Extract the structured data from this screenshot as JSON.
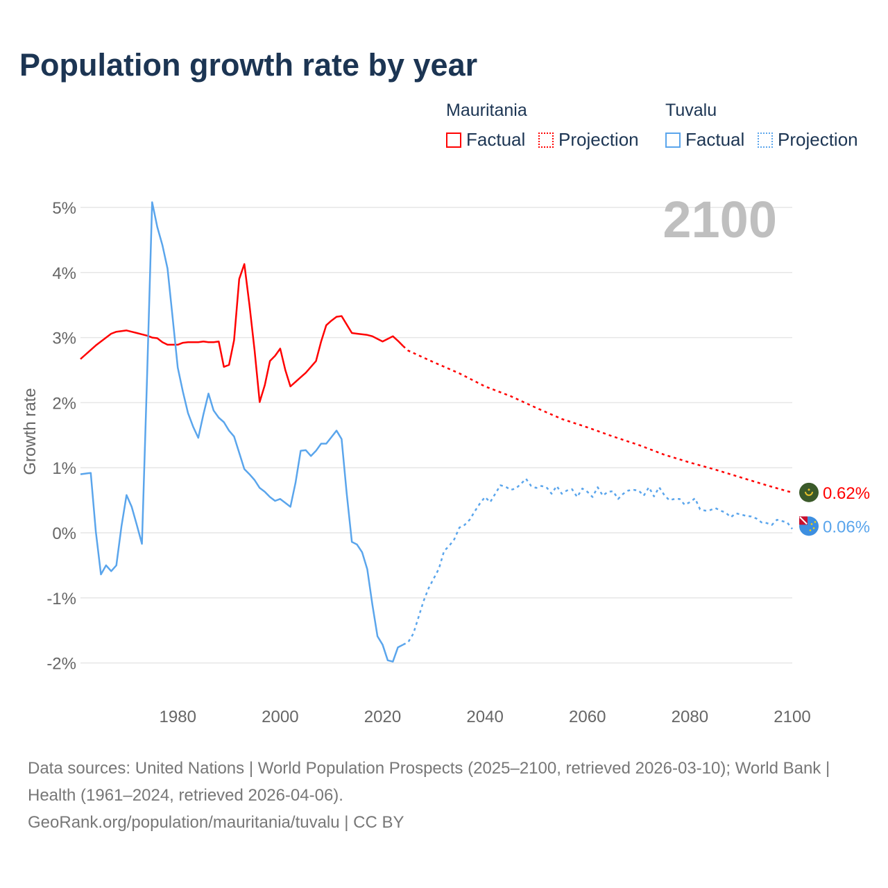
{
  "title": "Population growth rate by year",
  "legend": {
    "groups": [
      {
        "name": "Mauritania",
        "factual": "Factual",
        "projection": "Projection",
        "color": "#ff0000"
      },
      {
        "name": "Tuvalu",
        "factual": "Factual",
        "projection": "Projection",
        "color": "#5aa5ec"
      }
    ]
  },
  "year_badge": "2100",
  "footer": {
    "sources": "Data sources: United Nations | World Population Prospects (2025–2100, retrieved 2026-03-10); World Bank | Health (1961–2024, retrieved 2026-04-06).",
    "credit": "GeoRank.org/population/mauritania/tuvalu | CC BY"
  },
  "chart_data": {
    "type": "line",
    "title": "Population growth rate by year",
    "xlabel": "",
    "ylabel": "Growth rate",
    "xlim": [
      1961,
      2100
    ],
    "ylim": [
      -2.3,
      5.1
    ],
    "x_ticks": [
      "1980",
      "2000",
      "2020",
      "2040",
      "2060",
      "2080",
      "2100"
    ],
    "x_tick_values": [
      1980,
      2000,
      2020,
      2040,
      2060,
      2080,
      2100
    ],
    "y_ticks": [
      "5%",
      "4%",
      "3%",
      "2%",
      "1%",
      "0%",
      "-1%",
      "-2%"
    ],
    "y_tick_values": [
      5,
      4,
      3,
      2,
      1,
      0,
      -1,
      -2
    ],
    "grid": true,
    "legend_position": "top-right",
    "series": [
      {
        "name": "Mauritania",
        "kind": "Factual",
        "color": "#ff0000",
        "x": [
          1961,
          1962,
          1963,
          1964,
          1965,
          1966,
          1967,
          1968,
          1969,
          1970,
          1971,
          1972,
          1973,
          1974,
          1975,
          1976,
          1977,
          1978,
          1979,
          1980,
          1981,
          1982,
          1983,
          1984,
          1985,
          1986,
          1987,
          1988,
          1989,
          1990,
          1991,
          1992,
          1993,
          1994,
          1995,
          1996,
          1997,
          1998,
          1999,
          2000,
          2001,
          2002,
          2003,
          2004,
          2005,
          2006,
          2007,
          2008,
          2009,
          2010,
          2011,
          2012,
          2013,
          2014,
          2015,
          2016,
          2017,
          2018,
          2019,
          2020,
          2021,
          2022,
          2023,
          2024
        ],
        "y": [
          2.67,
          2.74,
          2.81,
          2.88,
          2.94,
          3.0,
          3.06,
          3.09,
          3.1,
          3.11,
          3.09,
          3.07,
          3.05,
          3.03,
          3.0,
          2.99,
          2.93,
          2.89,
          2.89,
          2.89,
          2.92,
          2.93,
          2.93,
          2.93,
          2.94,
          2.93,
          2.93,
          2.94,
          2.55,
          2.58,
          2.96,
          3.9,
          4.13,
          3.5,
          2.8,
          2.01,
          2.27,
          2.64,
          2.72,
          2.83,
          2.5,
          2.25,
          2.32,
          2.39,
          2.46,
          2.55,
          2.64,
          2.94,
          3.19,
          3.26,
          3.32,
          3.33,
          3.2,
          3.07,
          3.06,
          3.05,
          3.04,
          3.02,
          2.98,
          2.94,
          2.98,
          3.02,
          2.95,
          2.87
        ]
      },
      {
        "name": "Mauritania",
        "kind": "Projection",
        "color": "#ff0000",
        "x": [
          2024,
          2025,
          2030,
          2035,
          2040,
          2045,
          2050,
          2055,
          2060,
          2065,
          2070,
          2075,
          2080,
          2085,
          2090,
          2095,
          2099,
          2100
        ],
        "y": [
          2.87,
          2.8,
          2.62,
          2.45,
          2.25,
          2.1,
          1.92,
          1.75,
          1.62,
          1.48,
          1.35,
          1.2,
          1.08,
          0.97,
          0.85,
          0.73,
          0.64,
          0.62
        ]
      },
      {
        "name": "Tuvalu",
        "kind": "Factual",
        "color": "#5aa5ec",
        "x": [
          1961,
          1962,
          1963,
          1964,
          1965,
          1966,
          1967,
          1968,
          1969,
          1970,
          1971,
          1972,
          1973,
          1974,
          1975,
          1976,
          1977,
          1978,
          1979,
          1980,
          1981,
          1982,
          1983,
          1984,
          1985,
          1986,
          1987,
          1988,
          1989,
          1990,
          1991,
          1992,
          1993,
          1994,
          1995,
          1996,
          1997,
          1998,
          1999,
          2000,
          2001,
          2002,
          2003,
          2004,
          2005,
          2006,
          2007,
          2008,
          2009,
          2010,
          2011,
          2012,
          2013,
          2014,
          2015,
          2016,
          2017,
          2018,
          2019,
          2020,
          2021,
          2022,
          2023,
          2024
        ],
        "y": [
          0.9,
          0.91,
          0.92,
          0.02,
          -0.64,
          -0.5,
          -0.59,
          -0.5,
          0.1,
          0.58,
          0.4,
          0.12,
          -0.17,
          2.4,
          5.08,
          4.7,
          4.42,
          4.06,
          3.3,
          2.54,
          2.17,
          1.84,
          1.63,
          1.46,
          1.82,
          2.14,
          1.88,
          1.77,
          1.7,
          1.57,
          1.48,
          1.23,
          0.98,
          0.9,
          0.81,
          0.69,
          0.63,
          0.55,
          0.49,
          0.52,
          0.46,
          0.4,
          0.77,
          1.26,
          1.27,
          1.18,
          1.26,
          1.37,
          1.37,
          1.47,
          1.57,
          1.44,
          0.6,
          -0.14,
          -0.18,
          -0.3,
          -0.56,
          -1.1,
          -1.59,
          -1.72,
          -1.96,
          -1.98,
          -1.76,
          -1.72
        ]
      },
      {
        "name": "Tuvalu",
        "kind": "Projection",
        "color": "#5aa5ec",
        "x": [
          2024,
          2025,
          2026,
          2027,
          2028,
          2029,
          2030,
          2031,
          2032,
          2033,
          2034,
          2035,
          2036,
          2037,
          2038,
          2039,
          2040,
          2041,
          2042,
          2043,
          2044,
          2045,
          2046,
          2047,
          2048,
          2049,
          2050,
          2051,
          2052,
          2053,
          2054,
          2055,
          2056,
          2057,
          2058,
          2059,
          2060,
          2061,
          2062,
          2063,
          2064,
          2065,
          2066,
          2067,
          2068,
          2069,
          2070,
          2071,
          2072,
          2073,
          2074,
          2075,
          2076,
          2077,
          2078,
          2079,
          2080,
          2081,
          2082,
          2083,
          2084,
          2085,
          2086,
          2087,
          2088,
          2089,
          2090,
          2091,
          2092,
          2093,
          2094,
          2095,
          2096,
          2097,
          2098,
          2099,
          2100
        ],
        "y": [
          -1.72,
          -1.68,
          -1.55,
          -1.3,
          -1.05,
          -0.85,
          -0.7,
          -0.55,
          -0.28,
          -0.2,
          -0.1,
          0.08,
          0.12,
          0.2,
          0.33,
          0.45,
          0.55,
          0.47,
          0.6,
          0.73,
          0.71,
          0.66,
          0.68,
          0.75,
          0.83,
          0.72,
          0.69,
          0.72,
          0.7,
          0.6,
          0.72,
          0.6,
          0.65,
          0.67,
          0.55,
          0.68,
          0.63,
          0.55,
          0.7,
          0.57,
          0.63,
          0.64,
          0.52,
          0.6,
          0.65,
          0.66,
          0.65,
          0.57,
          0.7,
          0.56,
          0.7,
          0.58,
          0.5,
          0.52,
          0.52,
          0.43,
          0.47,
          0.53,
          0.36,
          0.34,
          0.35,
          0.38,
          0.34,
          0.31,
          0.24,
          0.3,
          0.28,
          0.26,
          0.25,
          0.22,
          0.16,
          0.15,
          0.12,
          0.2,
          0.18,
          0.16,
          0.06
        ]
      }
    ],
    "end_labels": [
      {
        "country": "Mauritania",
        "text": "0.62%",
        "value": 0.62,
        "color": "#ff0000"
      },
      {
        "country": "Tuvalu",
        "text": "0.06%",
        "value": 0.06,
        "color": "#5aa5ec"
      }
    ]
  }
}
